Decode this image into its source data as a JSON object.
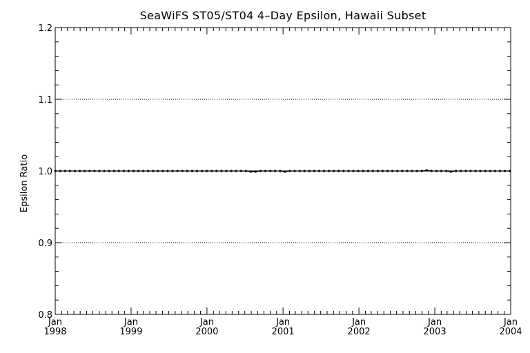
{
  "chart_data": {
    "type": "line",
    "title": "SeaWiFS ST05/ST04 4–Day Epsilon, Hawaii Subset",
    "xlabel": "",
    "ylabel": "Epsilon Ratio",
    "xlim": [
      "1998-01-01",
      "2004-01-01"
    ],
    "ylim": [
      0.8,
      1.2
    ],
    "yticks": [
      "0.8",
      "0.9",
      "1.0",
      "1.1",
      "1.2"
    ],
    "ytick_values": [
      0.8,
      0.9,
      1.0,
      1.1,
      1.2
    ],
    "xticks": [
      {
        "month": "Jan",
        "year": "1998",
        "date": "1998-01-01"
      },
      {
        "month": "Jan",
        "year": "1999",
        "date": "1999-01-01"
      },
      {
        "month": "Jan",
        "year": "2000",
        "date": "2000-01-01"
      },
      {
        "month": "Jan",
        "year": "2001",
        "date": "2001-01-01"
      },
      {
        "month": "Jan",
        "year": "2002",
        "date": "2002-01-01"
      },
      {
        "month": "Jan",
        "year": "2003",
        "date": "2003-01-01"
      },
      {
        "month": "Jan",
        "year": "2004",
        "date": "2004-01-01"
      }
    ],
    "grid": "dotted horizontal at 0.9, 1.0, 1.1",
    "reference_line": 1.0,
    "series": [
      {
        "x": [
          "1998-01-02",
          "1998-01-25",
          "1998-02-18",
          "1998-03-13",
          "1998-04-06",
          "1998-04-29",
          "1998-05-23",
          "1998-06-15",
          "1998-07-09",
          "1998-08-01",
          "1998-08-25",
          "1998-09-17",
          "1998-10-11",
          "1998-11-03",
          "1998-11-27",
          "1998-12-20",
          "1999-01-13",
          "1999-02-05",
          "1999-03-01",
          "1999-03-24",
          "1999-04-17",
          "1999-05-10",
          "1999-06-03",
          "1999-06-26",
          "1999-07-20",
          "1999-08-12",
          "1999-09-05",
          "1999-09-28",
          "1999-10-22",
          "1999-11-14",
          "1999-12-08",
          "1999-12-31",
          "2000-01-24",
          "2000-02-16",
          "2000-03-11",
          "2000-04-03",
          "2000-04-27",
          "2000-05-20",
          "2000-06-13",
          "2000-07-06",
          "2000-07-30",
          "2000-08-22",
          "2000-09-15",
          "2000-10-08",
          "2000-11-01",
          "2000-11-24",
          "2000-12-18",
          "2001-01-10",
          "2001-02-03",
          "2001-02-26",
          "2001-03-22",
          "2001-04-14",
          "2001-05-08",
          "2001-05-31",
          "2001-06-24",
          "2001-07-17",
          "2001-08-10",
          "2001-09-02",
          "2001-09-26",
          "2001-10-19",
          "2001-11-12",
          "2001-12-05",
          "2001-12-29",
          "2002-01-21",
          "2002-02-14",
          "2002-03-09",
          "2002-04-02",
          "2002-04-25",
          "2002-05-19",
          "2002-06-11",
          "2002-07-05",
          "2002-07-28",
          "2002-08-21",
          "2002-09-13",
          "2002-10-07",
          "2002-10-30",
          "2002-11-23",
          "2002-12-16",
          "2003-01-09",
          "2003-02-01",
          "2003-02-25",
          "2003-03-20",
          "2003-04-13",
          "2003-05-06",
          "2003-05-30",
          "2003-06-22",
          "2003-07-16",
          "2003-08-08",
          "2003-09-01",
          "2003-09-24",
          "2003-10-18",
          "2003-11-10",
          "2003-12-04",
          "2003-12-27"
        ],
        "y": [
          1.0,
          1.0,
          1.0,
          1.0,
          1.0,
          1.0,
          1.0,
          1.0,
          1.0,
          1.0,
          1.0,
          1.0,
          1.0,
          1.0,
          1.0,
          1.0,
          1.0,
          1.0,
          1.0,
          1.0,
          1.0,
          1.0,
          1.0,
          1.0,
          1.0,
          1.0,
          1.0,
          1.0,
          1.0,
          1.0,
          1.0,
          1.0,
          1.0,
          1.0,
          1.0,
          1.0,
          1.0,
          1.0,
          1.0,
          1.0,
          0.999,
          0.999,
          1.0,
          1.0,
          1.0,
          1.0,
          1.0,
          0.999,
          1.0,
          1.0,
          1.0,
          1.0,
          1.0,
          1.0,
          1.0,
          1.0,
          1.0,
          1.0,
          1.0,
          1.0,
          1.0,
          1.0,
          1.0,
          1.0,
          1.0,
          1.0,
          1.0,
          1.0,
          1.0,
          1.0,
          1.0,
          1.0,
          1.0,
          1.0,
          1.0,
          1.0,
          1.001,
          1.0,
          1.0,
          1.0,
          1.0,
          0.999,
          1.0,
          1.0,
          1.0,
          1.0,
          1.0,
          1.0,
          1.0,
          1.0,
          1.0,
          1.0,
          1.0,
          1.0
        ]
      }
    ]
  }
}
